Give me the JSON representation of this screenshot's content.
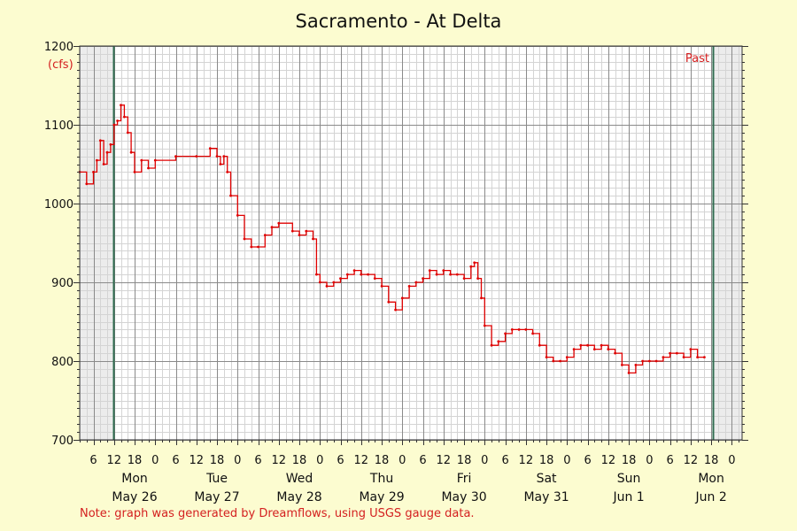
{
  "chart_data": {
    "type": "line",
    "title": "Sacramento - At Delta",
    "ylabel": "(cfs)",
    "ylim": [
      700,
      1200
    ],
    "y_ticks": [
      "700",
      "800",
      "900",
      "1000",
      "1100",
      "1200"
    ],
    "x_range_hours": "2025-05-25T20:00 to 2025-06-02T21:00",
    "x_hour_ticks": [
      "6",
      "12",
      "18",
      "0",
      "6",
      "12",
      "18",
      "0",
      "6",
      "12",
      "18",
      "0",
      "6",
      "12",
      "18",
      "0",
      "6",
      "12",
      "18",
      "0",
      "6",
      "12",
      "18",
      "0",
      "6",
      "12",
      "18",
      "0",
      "6",
      "12",
      "18",
      "0",
      "6",
      "12",
      "18"
    ],
    "days": [
      {
        "day": "Mon",
        "date": "May 26"
      },
      {
        "day": "Tue",
        "date": "May 27"
      },
      {
        "day": "Wed",
        "date": "May 28"
      },
      {
        "day": "Thu",
        "date": "May 29"
      },
      {
        "day": "Fri",
        "date": "May 30"
      },
      {
        "day": "Sat",
        "date": "May 31"
      },
      {
        "day": "Sun",
        "date": "Jun 1"
      },
      {
        "day": "Mon",
        "date": "Jun 2"
      }
    ],
    "annotation": "Past",
    "grid": true,
    "series": [
      {
        "color": "#e00000",
        "x": [
          "2025-05-25T20:00",
          "2025-05-25T22:00",
          "2025-05-26T00:00",
          "2025-05-26T01:00",
          "2025-05-26T02:00",
          "2025-05-26T03:00",
          "2025-05-26T04:00",
          "2025-05-26T05:00",
          "2025-05-26T06:00",
          "2025-05-26T07:00",
          "2025-05-26T08:00",
          "2025-05-26T09:00",
          "2025-05-26T10:00",
          "2025-05-26T11:00",
          "2025-05-26T12:00",
          "2025-05-26T14:00",
          "2025-05-26T16:00",
          "2025-05-26T18:00",
          "2025-05-27T00:00",
          "2025-05-27T06:00",
          "2025-05-27T10:00",
          "2025-05-27T12:00",
          "2025-05-27T13:00",
          "2025-05-27T14:00",
          "2025-05-27T15:00",
          "2025-05-27T16:00",
          "2025-05-27T18:00",
          "2025-05-27T20:00",
          "2025-05-27T22:00",
          "2025-05-28T00:00",
          "2025-05-28T02:00",
          "2025-05-28T04:00",
          "2025-05-28T06:00",
          "2025-05-28T10:00",
          "2025-05-28T12:00",
          "2025-05-28T14:00",
          "2025-05-28T16:00",
          "2025-05-28T17:00",
          "2025-05-28T18:00",
          "2025-05-28T20:00",
          "2025-05-28T22:00",
          "2025-05-29T00:00",
          "2025-05-29T02:00",
          "2025-05-29T04:00",
          "2025-05-29T06:00",
          "2025-05-29T08:00",
          "2025-05-29T10:00",
          "2025-05-29T12:00",
          "2025-05-29T14:00",
          "2025-05-29T16:00",
          "2025-05-29T18:00",
          "2025-05-29T20:00",
          "2025-05-29T22:00",
          "2025-05-30T00:00",
          "2025-05-30T02:00",
          "2025-05-30T04:00",
          "2025-05-30T06:00",
          "2025-05-30T08:00",
          "2025-05-30T10:00",
          "2025-05-30T12:00",
          "2025-05-30T14:00",
          "2025-05-30T15:00",
          "2025-05-30T16:00",
          "2025-05-30T17:00",
          "2025-05-30T18:00",
          "2025-05-30T20:00",
          "2025-05-30T22:00",
          "2025-05-31T00:00",
          "2025-05-31T02:00",
          "2025-05-31T04:00",
          "2025-05-31T06:00",
          "2025-05-31T08:00",
          "2025-05-31T10:00",
          "2025-05-31T12:00",
          "2025-05-31T14:00",
          "2025-05-31T16:00",
          "2025-05-31T18:00",
          "2025-05-31T20:00",
          "2025-05-31T22:00",
          "2025-06-01T00:00",
          "2025-06-01T02:00",
          "2025-06-01T04:00",
          "2025-06-01T06:00",
          "2025-06-01T08:00",
          "2025-06-01T10:00",
          "2025-06-01T12:00",
          "2025-06-01T14:00",
          "2025-06-01T16:00",
          "2025-06-01T18:00",
          "2025-06-01T20:00",
          "2025-06-01T22:00",
          "2025-06-02T00:00",
          "2025-06-02T02:00",
          "2025-06-02T04:00",
          "2025-06-02T06:00",
          "2025-06-02T08:00",
          "2025-06-02T10:00"
        ],
        "values": [
          1040,
          1025,
          1040,
          1055,
          1080,
          1050,
          1065,
          1075,
          1100,
          1105,
          1125,
          1110,
          1090,
          1065,
          1040,
          1055,
          1045,
          1055,
          1060,
          1060,
          1070,
          1060,
          1050,
          1060,
          1040,
          1010,
          985,
          955,
          945,
          945,
          960,
          970,
          975,
          965,
          960,
          965,
          955,
          910,
          900,
          895,
          900,
          905,
          910,
          915,
          910,
          910,
          905,
          895,
          875,
          865,
          880,
          895,
          900,
          905,
          915,
          910,
          915,
          910,
          910,
          905,
          920,
          925,
          905,
          880,
          845,
          820,
          825,
          835,
          840,
          840,
          840,
          835,
          820,
          805,
          800,
          800,
          805,
          815,
          820,
          820,
          815,
          820,
          815,
          810,
          795,
          785,
          795,
          800,
          800,
          800,
          805,
          810,
          810,
          805,
          815,
          805,
          805
        ]
      }
    ]
  },
  "footnote": "Note: graph was generated by Dreamflows, using USGS gauge data."
}
